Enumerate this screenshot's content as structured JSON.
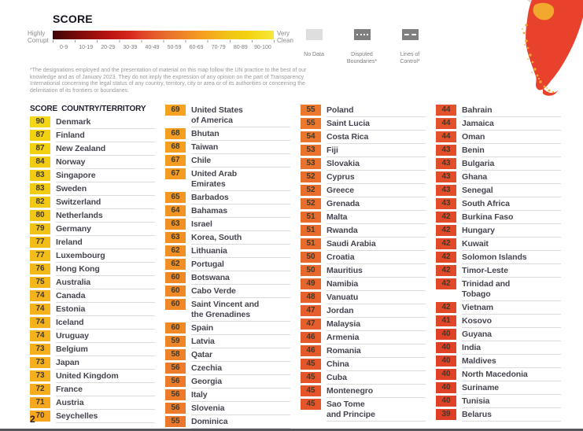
{
  "legend": {
    "title": "SCORE",
    "left_label": "Highly Corrupt",
    "right_label": "Very Clean",
    "ticks": [
      "0-9",
      "10-19",
      "20-29",
      "30-39",
      "40-49",
      "50-59",
      "60-69",
      "70-79",
      "80-89",
      "90-100"
    ],
    "no_data_label": "No Data",
    "disputed_label": "Disputed Boundaries*",
    "lines_label": "Lines of Control*",
    "footnote": "*The designations employed and the presentation of material on this map follow the UN practice to the best of our knowledge and as of January 2023. They do not imply the expression of any opinion on the part of Transparency International concerning the legal status of any country, territory, city or area or of its authorities or concerning the delimitation of its frontiers or boundaries."
  },
  "table": {
    "header_score": "SCORE",
    "header_country": "COUNTRY/TERRITORY",
    "columns": [
      [
        {
          "score": 90,
          "name": "Denmark"
        },
        {
          "score": 87,
          "name": "Finland"
        },
        {
          "score": 87,
          "name": "New Zealand"
        },
        {
          "score": 84,
          "name": "Norway"
        },
        {
          "score": 83,
          "name": "Singapore"
        },
        {
          "score": 83,
          "name": "Sweden"
        },
        {
          "score": 82,
          "name": "Switzerland"
        },
        {
          "score": 80,
          "name": "Netherlands"
        },
        {
          "score": 79,
          "name": "Germany"
        },
        {
          "score": 77,
          "name": "Ireland"
        },
        {
          "score": 77,
          "name": "Luxembourg"
        },
        {
          "score": 76,
          "name": "Hong Kong"
        },
        {
          "score": 75,
          "name": "Australia"
        },
        {
          "score": 74,
          "name": "Canada"
        },
        {
          "score": 74,
          "name": "Estonia"
        },
        {
          "score": 74,
          "name": "Iceland"
        },
        {
          "score": 74,
          "name": "Uruguay"
        },
        {
          "score": 73,
          "name": "Belgium"
        },
        {
          "score": 73,
          "name": "Japan"
        },
        {
          "score": 73,
          "name": "United Kingdom"
        },
        {
          "score": 72,
          "name": "France"
        },
        {
          "score": 71,
          "name": "Austria"
        },
        {
          "score": 70,
          "name": "Seychelles"
        }
      ],
      [
        {
          "score": 69,
          "name": "United States\nof America"
        },
        {
          "score": 68,
          "name": "Bhutan"
        },
        {
          "score": 68,
          "name": "Taiwan"
        },
        {
          "score": 67,
          "name": "Chile"
        },
        {
          "score": 67,
          "name": "United Arab\nEmirates"
        },
        {
          "score": 65,
          "name": "Barbados"
        },
        {
          "score": 64,
          "name": "Bahamas"
        },
        {
          "score": 63,
          "name": "Israel"
        },
        {
          "score": 63,
          "name": "Korea, South"
        },
        {
          "score": 62,
          "name": "Lithuania"
        },
        {
          "score": 62,
          "name": "Portugal"
        },
        {
          "score": 60,
          "name": "Botswana"
        },
        {
          "score": 60,
          "name": "Cabo Verde"
        },
        {
          "score": 60,
          "name": "Saint Vincent and\nthe Grenadines"
        },
        {
          "score": 60,
          "name": "Spain"
        },
        {
          "score": 59,
          "name": "Latvia"
        },
        {
          "score": 58,
          "name": "Qatar"
        },
        {
          "score": 56,
          "name": "Czechia"
        },
        {
          "score": 56,
          "name": "Georgia"
        },
        {
          "score": 56,
          "name": "Italy"
        },
        {
          "score": 56,
          "name": "Slovenia"
        },
        {
          "score": 55,
          "name": "Dominica"
        }
      ],
      [
        {
          "score": 55,
          "name": "Poland"
        },
        {
          "score": 55,
          "name": "Saint Lucia"
        },
        {
          "score": 54,
          "name": "Costa Rica"
        },
        {
          "score": 53,
          "name": "Fiji"
        },
        {
          "score": 53,
          "name": "Slovakia"
        },
        {
          "score": 52,
          "name": "Cyprus"
        },
        {
          "score": 52,
          "name": "Greece"
        },
        {
          "score": 52,
          "name": "Grenada"
        },
        {
          "score": 51,
          "name": "Malta"
        },
        {
          "score": 51,
          "name": "Rwanda"
        },
        {
          "score": 51,
          "name": "Saudi Arabia"
        },
        {
          "score": 50,
          "name": "Croatia"
        },
        {
          "score": 50,
          "name": "Mauritius"
        },
        {
          "score": 49,
          "name": "Namibia"
        },
        {
          "score": 48,
          "name": "Vanuatu"
        },
        {
          "score": 47,
          "name": "Jordan"
        },
        {
          "score": 47,
          "name": "Malaysia"
        },
        {
          "score": 46,
          "name": "Armenia"
        },
        {
          "score": 46,
          "name": "Romania"
        },
        {
          "score": 45,
          "name": "China"
        },
        {
          "score": 45,
          "name": "Cuba"
        },
        {
          "score": 45,
          "name": "Montenegro"
        },
        {
          "score": 45,
          "name": "Sao Tome\nand Principe"
        }
      ],
      [
        {
          "score": 44,
          "name": "Bahrain"
        },
        {
          "score": 44,
          "name": "Jamaica"
        },
        {
          "score": 44,
          "name": "Oman"
        },
        {
          "score": 43,
          "name": "Benin"
        },
        {
          "score": 43,
          "name": "Bulgaria"
        },
        {
          "score": 43,
          "name": "Ghana"
        },
        {
          "score": 43,
          "name": "Senegal"
        },
        {
          "score": 43,
          "name": "South Africa"
        },
        {
          "score": 42,
          "name": "Burkina Faso"
        },
        {
          "score": 42,
          "name": "Hungary"
        },
        {
          "score": 42,
          "name": "Kuwait"
        },
        {
          "score": 42,
          "name": "Solomon Islands"
        },
        {
          "score": 42,
          "name": "Timor-Leste"
        },
        {
          "score": 42,
          "name": "Trinidad and\nTobago"
        },
        {
          "score": 42,
          "name": "Vietnam"
        },
        {
          "score": 41,
          "name": "Kosovo"
        },
        {
          "score": 40,
          "name": "Guyana"
        },
        {
          "score": 40,
          "name": "India"
        },
        {
          "score": 40,
          "name": "Maldives"
        },
        {
          "score": 40,
          "name": "North Macedonia"
        },
        {
          "score": 40,
          "name": "Suriname"
        },
        {
          "score": 40,
          "name": "Tunisia"
        },
        {
          "score": 39,
          "name": "Belarus"
        }
      ]
    ]
  },
  "page": {
    "number": "2"
  },
  "colors": {
    "score_stops": [
      [
        0,
        "#3F0505"
      ],
      [
        12,
        "#7E0A0A"
      ],
      [
        25,
        "#B81210"
      ],
      [
        35,
        "#D6281C"
      ],
      [
        40,
        "#E04228"
      ],
      [
        47,
        "#E55E2B"
      ],
      [
        54,
        "#EA752D"
      ],
      [
        62,
        "#F18E24"
      ],
      [
        70,
        "#F6A51F"
      ],
      [
        80,
        "#F0C617"
      ],
      [
        88,
        "#F2D20F"
      ],
      [
        100,
        "#F8E83A"
      ]
    ],
    "no_data_swatch": "#DEDEDE",
    "boundary_swatch": "#7F7F7F",
    "row_divider": "#DBDBDB",
    "map_red": "#E8412C",
    "map_orange": "#F2A72E"
  }
}
